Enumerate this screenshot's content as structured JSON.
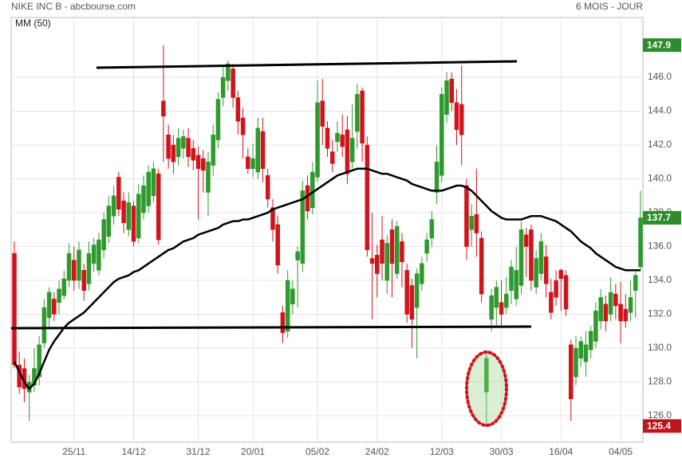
{
  "header": {
    "title": "NIKE INC B - abcbourse.com",
    "period": "6 MOIS - JOUR"
  },
  "chart_data": {
    "type": "candlestick",
    "categories": [
      null,
      null,
      null,
      null,
      null,
      null,
      null,
      null,
      null,
      null,
      null,
      null,
      "25/11",
      null,
      null,
      null,
      null,
      null,
      null,
      null,
      null,
      null,
      null,
      null,
      "14/12",
      null,
      null,
      null,
      null,
      null,
      null,
      null,
      null,
      null,
      null,
      null,
      null,
      "31/12",
      null,
      null,
      null,
      null,
      null,
      null,
      null,
      null,
      null,
      null,
      "20/01",
      null,
      null,
      null,
      null,
      null,
      null,
      null,
      null,
      null,
      null,
      null,
      null,
      "05/02",
      null,
      null,
      null,
      null,
      null,
      null,
      null,
      null,
      null,
      null,
      null,
      "24/02",
      null,
      null,
      null,
      null,
      null,
      null,
      null,
      null,
      null,
      null,
      null,
      null,
      "12/03",
      null,
      null,
      null,
      null,
      null,
      null,
      null,
      null,
      null,
      null,
      null,
      "30/03",
      null,
      null,
      null,
      null,
      null,
      null,
      null,
      null,
      null,
      null,
      null,
      "16/04",
      null,
      null,
      null,
      null,
      null,
      null,
      null,
      null,
      null,
      null,
      null,
      "04/05",
      null,
      null,
      null,
      null
    ],
    "open": [
      135.6,
      129.0,
      128.8,
      127.4,
      127.8,
      128.3,
      130.3,
      131.8,
      132.9,
      132.7,
      133.1,
      134.0,
      135.2,
      134.0,
      134.6,
      133.8,
      135.0,
      134.6,
      135.8,
      136.6,
      137.8,
      140.1,
      138.7,
      137.0,
      138.4,
      136.5,
      138.0,
      138.4,
      139.0,
      140.3,
      144.6,
      142.6,
      142.0,
      141.3,
      141.8,
      142.4,
      141.8,
      141.4,
      141.2,
      139.2,
      140.8,
      142.3,
      144.8,
      145.8,
      146.5,
      144.8,
      143.6,
      141.3,
      140.6,
      140.4,
      142.8,
      140.2,
      138.3,
      137.3,
      132.1,
      131.0,
      132.6,
      135.2,
      135.0,
      139.6,
      138.3,
      140.1,
      144.6,
      143.0,
      141.6,
      142.2,
      142.6,
      142.9,
      141.0,
      142.8,
      145.2,
      142.0,
      135.3,
      135.5,
      136.4,
      134.0,
      137.0,
      134.4,
      136.3,
      134.6,
      133.7,
      132.4,
      133.8,
      135.6,
      136.5,
      139.2,
      140.2,
      143.8,
      145.9,
      144.5,
      144.4,
      139.6,
      137.0,
      137.9,
      136.5,
      127.4,
      131.7,
      132.4,
      132.7,
      132.4,
      133.4,
      132.9,
      133.7,
      136.7,
      137.0,
      133.6,
      134.4,
      135.4,
      133.3,
      134.0,
      134.6,
      134.3,
      130.2,
      128.3,
      129.4,
      129.2,
      129.9,
      130.4,
      131.6,
      132.6,
      132.0,
      133.2,
      132.6,
      132.3,
      132.1,
      133.4,
      134.8
    ],
    "high": [
      136.3,
      129.8,
      129.4,
      128.4,
      130.0,
      130.7,
      132.9,
      133.6,
      133.3,
      134.0,
      134.6,
      136.2,
      136.0,
      136.3,
      135.0,
      136.3,
      136.5,
      136.8,
      138.0,
      139.0,
      139.6,
      140.4,
      139.2,
      139.2,
      138.7,
      139.7,
      140.2,
      140.8,
      141.0,
      140.6,
      147.9,
      143.2,
      142.6,
      143.0,
      142.9,
      143.0,
      142.3,
      141.9,
      141.7,
      141.6,
      143.2,
      145.1,
      146.6,
      147.0,
      146.8,
      145.2,
      144.2,
      141.8,
      142.1,
      143.6,
      143.6,
      140.6,
      138.8,
      137.8,
      132.5,
      134.6,
      134.0,
      136.0,
      139.9,
      140.2,
      141.0,
      145.8,
      145.9,
      143.4,
      142.3,
      143.4,
      143.8,
      143.7,
      144.4,
      145.6,
      145.4,
      142.5,
      138.0,
      136.1,
      137.8,
      136.7,
      137.6,
      137.5,
      136.8,
      135.0,
      134.1,
      134.7,
      135.4,
      136.8,
      138.1,
      142.0,
      145.4,
      146.3,
      146.3,
      145.3,
      146.7,
      140.0,
      138.5,
      140.6,
      136.9,
      129.9,
      133.5,
      134.0,
      134.0,
      134.2,
      135.2,
      136.0,
      137.5,
      137.1,
      137.3,
      135.8,
      136.8,
      136.1,
      134.1,
      134.6,
      134.7,
      134.6,
      130.5,
      130.7,
      130.7,
      131.0,
      131.3,
      132.7,
      133.5,
      133.1,
      134.2,
      133.8,
      133.9,
      133.2,
      134.0,
      134.5,
      139.3
    ],
    "low": [
      128.8,
      127.3,
      126.8,
      125.7,
      127.4,
      127.8,
      130.0,
      131.2,
      131.6,
      132.0,
      132.9,
      133.6,
      133.4,
      133.5,
      132.8,
      133.4,
      134.5,
      134.3,
      135.3,
      136.2,
      137.3,
      137.8,
      136.8,
      136.6,
      136.0,
      136.2,
      137.6,
      138.0,
      138.6,
      136.1,
      141.0,
      140.6,
      140.3,
      140.8,
      141.2,
      140.7,
      140.5,
      137.6,
      139.2,
      137.8,
      140.2,
      141.8,
      144.3,
      145.2,
      144.2,
      142.6,
      141.2,
      140.3,
      140.1,
      140.0,
      139.8,
      138.3,
      136.3,
      134.4,
      130.3,
      130.6,
      132.0,
      132.4,
      134.5,
      137.6,
      137.9,
      139.8,
      142.0,
      141.3,
      140.4,
      141.6,
      141.3,
      139.7,
      140.6,
      141.8,
      141.0,
      135.4,
      131.7,
      133.0,
      134.0,
      133.2,
      133.0,
      134.1,
      133.6,
      131.5,
      130.0,
      129.4,
      133.4,
      135.1,
      136.0,
      138.5,
      139.8,
      143.3,
      144.0,
      142.0,
      140.8,
      135.2,
      136.0,
      135.4,
      132.7,
      125.4,
      131.0,
      131.3,
      131.2,
      132.0,
      132.6,
      132.5,
      133.2,
      134.2,
      133.4,
      133.2,
      134.0,
      133.0,
      131.7,
      132.5,
      132.2,
      131.9,
      125.7,
      127.8,
      128.9,
      128.3,
      129.4,
      130.0,
      131.1,
      131.0,
      131.6,
      131.7,
      130.3,
      131.2,
      131.6,
      131.8,
      134.6
    ],
    "close": [
      129.0,
      127.7,
      127.6,
      128.0,
      128.8,
      130.2,
      132.4,
      133.3,
      132.0,
      133.5,
      134.1,
      135.6,
      134.0,
      135.8,
      133.4,
      135.6,
      136.1,
      136.4,
      137.6,
      138.4,
      139.0,
      138.2,
      137.4,
      138.6,
      136.3,
      139.1,
      139.6,
      140.4,
      140.6,
      136.4,
      143.7,
      141.2,
      141.0,
      142.4,
      142.5,
      141.3,
      141.1,
      140.6,
      140.5,
      141.0,
      142.6,
      144.7,
      146.0,
      146.8,
      144.8,
      143.4,
      142.6,
      140.6,
      141.2,
      143.0,
      140.6,
      138.8,
      137.0,
      134.9,
      130.9,
      134.0,
      133.5,
      135.7,
      139.3,
      138.1,
      140.4,
      144.5,
      143.1,
      141.8,
      140.9,
      142.7,
      141.9,
      140.3,
      142.4,
      145.0,
      142.1,
      135.8,
      135.0,
      134.4,
      135.0,
      136.2,
      135.0,
      137.2,
      135.1,
      132.0,
      131.7,
      134.4,
      135.0,
      136.4,
      137.6,
      141.0,
      145.0,
      145.8,
      144.5,
      142.9,
      142.6,
      136.0,
      137.8,
      136.8,
      133.2,
      129.4,
      133.1,
      133.6,
      132.0,
      133.2,
      134.8,
      134.6,
      137.0,
      136.0,
      134.0,
      135.3,
      136.3,
      133.8,
      132.1,
      133.0,
      134.1,
      132.3,
      127.0,
      130.0,
      130.4,
      130.2,
      131.0,
      132.2,
      133.0,
      131.6,
      133.3,
      132.5,
      131.6,
      131.6,
      133.0,
      134.3,
      137.7
    ],
    "up_color": "#2e9a2e",
    "down_color": "#d0141c",
    "series": [
      {
        "name": "MM (50)",
        "color": "#000000",
        "values": [
          129.2,
          128.6,
          128.0,
          127.6,
          127.9,
          128.5,
          129.2,
          129.9,
          130.4,
          130.8,
          131.2,
          131.5,
          131.7,
          131.9,
          132.1,
          132.4,
          132.7,
          133.0,
          133.3,
          133.6,
          133.9,
          134.1,
          134.2,
          134.3,
          134.5,
          134.6,
          134.8,
          135.0,
          135.2,
          135.4,
          135.6,
          135.8,
          135.9,
          136.1,
          136.3,
          136.4,
          136.5,
          136.7,
          136.8,
          136.9,
          137.0,
          137.1,
          137.3,
          137.4,
          137.5,
          137.5,
          137.6,
          137.6,
          137.7,
          137.8,
          137.9,
          138.0,
          138.2,
          138.3,
          138.4,
          138.5,
          138.6,
          138.7,
          138.8,
          139.0,
          139.2,
          139.4,
          139.6,
          139.8,
          140.0,
          140.2,
          140.3,
          140.4,
          140.5,
          140.6,
          140.6,
          140.6,
          140.5,
          140.4,
          140.3,
          140.3,
          140.2,
          140.1,
          140.0,
          139.9,
          139.7,
          139.6,
          139.5,
          139.4,
          139.3,
          139.3,
          139.3,
          139.4,
          139.5,
          139.6,
          139.6,
          139.5,
          139.3,
          139.0,
          138.7,
          138.4,
          138.1,
          137.9,
          137.7,
          137.6,
          137.6,
          137.6,
          137.6,
          137.7,
          137.8,
          137.8,
          137.8,
          137.7,
          137.6,
          137.5,
          137.3,
          137.1,
          136.9,
          136.6,
          136.3,
          136.1,
          135.9,
          135.6,
          135.4,
          135.2,
          135.0,
          134.8,
          134.7,
          134.6,
          134.6,
          134.6,
          134.6
        ]
      }
    ],
    "price_labels": [
      {
        "value": 147.9,
        "color": "#2e8b2e"
      },
      {
        "value": 137.7,
        "color": "#2e8b2e"
      },
      {
        "value": 125.4,
        "color": "#c0141c"
      }
    ],
    "ylim": [
      124.45,
      149.53
    ],
    "yticks": [
      {
        "value": 126,
        "label": "126.0"
      },
      {
        "value": 128,
        "label": "128.0"
      },
      {
        "value": 130,
        "label": "130.0"
      },
      {
        "value": 132,
        "label": "132.0"
      },
      {
        "value": 134,
        "label": "134.0"
      },
      {
        "value": 136,
        "label": "136.0"
      },
      {
        "value": 138,
        "label": "138.0"
      },
      {
        "value": 140,
        "label": "140.0"
      },
      {
        "value": 142,
        "label": "142.0"
      },
      {
        "value": 144,
        "label": "144.0"
      },
      {
        "value": 146,
        "label": "146.0"
      }
    ],
    "grid": true
  }
}
